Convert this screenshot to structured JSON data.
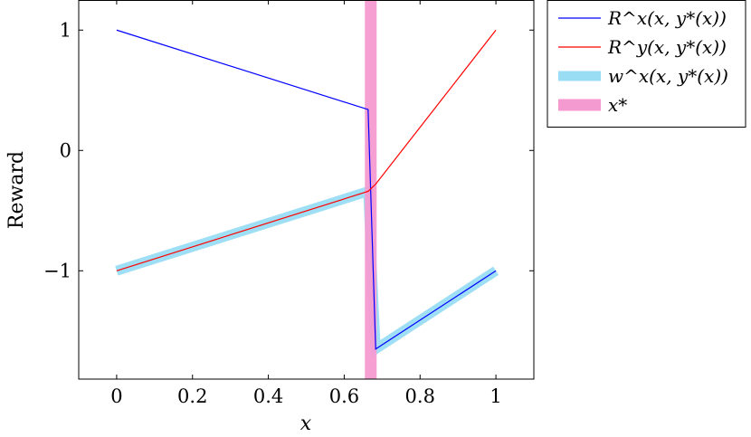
{
  "chart_data": {
    "type": "line",
    "title": "",
    "xlabel": "x",
    "ylabel": "Reward",
    "xlim": [
      -0.1,
      1.1
    ],
    "ylim": [
      -1.9,
      1.25
    ],
    "xticks": [
      0,
      0.2,
      0.4,
      0.6,
      0.8,
      1
    ],
    "xtick_labels": [
      "0",
      "0.2",
      "0.4",
      "0.6",
      "0.8",
      "1"
    ],
    "yticks": [
      -1,
      0,
      1
    ],
    "ytick_labels": [
      "−1",
      "0",
      "1"
    ],
    "grid": false,
    "legend_position": "outside-top-right",
    "series": [
      {
        "name": "R^x(x, y*(x))",
        "color": "#0000ff",
        "style": "thin",
        "x": [
          0,
          0.663,
          0.683,
          1
        ],
        "y": [
          1.0,
          0.34,
          -1.65,
          -1.0
        ]
      },
      {
        "name": "R^y(x, y*(x))",
        "color": "#ff0000",
        "style": "thin",
        "x": [
          0,
          0.663,
          0.683,
          1
        ],
        "y": [
          -1.0,
          -0.34,
          -0.28,
          1.0
        ]
      },
      {
        "name": "w^x(x, y*(x))",
        "color": "#99ddf5",
        "style": "thick",
        "x": [
          0,
          0.663,
          0.683,
          1
        ],
        "y": [
          -1.0,
          -0.34,
          -1.65,
          -1.0
        ]
      },
      {
        "name": "x*",
        "color": "#f49ad1",
        "style": "vertical-band",
        "x": [
          0.67
        ]
      }
    ]
  }
}
